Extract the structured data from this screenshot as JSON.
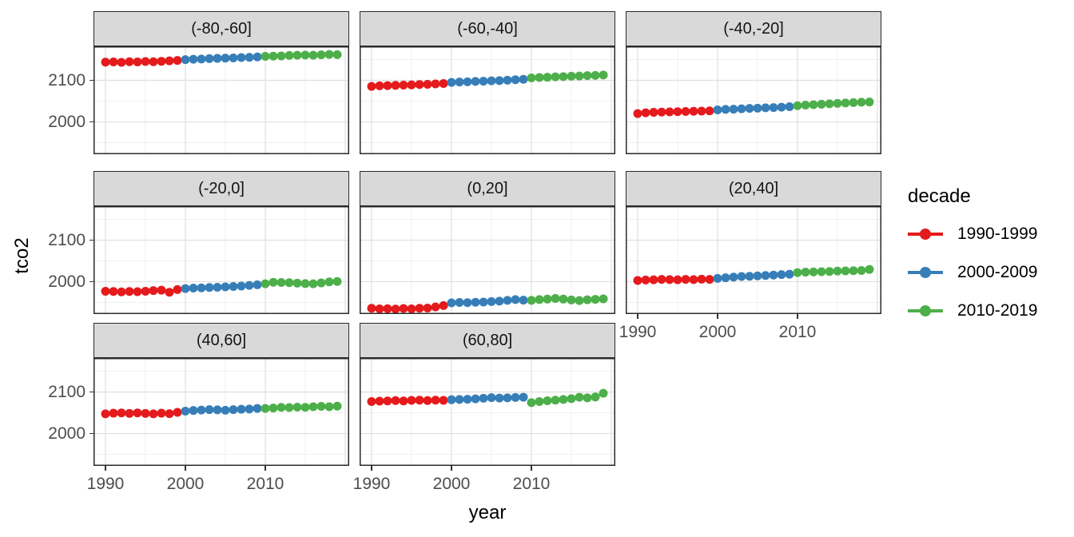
{
  "axes": {
    "x": {
      "label": "year"
    },
    "y": {
      "label": "tco2"
    }
  },
  "legend": {
    "title": "decade",
    "entries": [
      {
        "label": "1990-1999",
        "color": "#E41A1C",
        "year_min": 1990,
        "year_max": 1999
      },
      {
        "label": "2000-2009",
        "color": "#377EB8",
        "year_min": 2000,
        "year_max": 2009
      },
      {
        "label": "2010-2019",
        "color": "#4DAF4A",
        "year_min": 2010,
        "year_max": 2019
      }
    ]
  },
  "style": {
    "strip_bg": "#D9D9D9",
    "panel_bg": "#FFFFFF",
    "panel_border": "#2B2B2B",
    "grid_major": "#E1E1E1",
    "grid_minor": "#F0F0F0",
    "axis_text": "#4D4D4D"
  },
  "chart_data": {
    "type": "scatter",
    "title": "",
    "xlabel": "year",
    "ylabel": "tco2",
    "legend_position": "right",
    "grid": true,
    "x_domain": [
      1988.5,
      2020.5
    ],
    "y_domain": [
      1922,
      2182
    ],
    "x_major_gridlines": [
      1990,
      2000,
      2010,
      2020
    ],
    "x_minor_gridlines": [
      1995,
      2005,
      2015
    ],
    "y_major_gridlines": [
      2000,
      2100
    ],
    "y_minor_gridlines": [
      1950,
      2050,
      2150
    ],
    "x_ticks": [
      {
        "value": 1990,
        "label": "1990"
      },
      {
        "value": 2000,
        "label": "2000"
      },
      {
        "value": 2010,
        "label": "2010"
      }
    ],
    "y_ticks": [
      {
        "value": 2100,
        "label": "2100"
      },
      {
        "value": 2000,
        "label": "2000"
      }
    ],
    "years": [
      1990,
      1991,
      1992,
      1993,
      1994,
      1995,
      1996,
      1997,
      1998,
      1999,
      2000,
      2001,
      2002,
      2003,
      2004,
      2005,
      2006,
      2007,
      2008,
      2009,
      2010,
      2011,
      2012,
      2013,
      2014,
      2015,
      2016,
      2017,
      2018,
      2019
    ],
    "facets": [
      {
        "label": "(-80,-60]",
        "row": 0,
        "col": 0,
        "show_y_axis": true,
        "show_x_axis": false,
        "values": [
          2144,
          2144.5,
          2143.5,
          2145,
          2144.5,
          2145.5,
          2145,
          2146,
          2147,
          2148,
          2150,
          2151,
          2151.5,
          2152.5,
          2153,
          2153.5,
          2154,
          2155,
          2155.5,
          2156.5,
          2158,
          2158.5,
          2159,
          2160,
          2160.5,
          2161,
          2160.5,
          2161.5,
          2162.5,
          2162
        ]
      },
      {
        "label": "(-60,-40]",
        "row": 0,
        "col": 1,
        "show_y_axis": false,
        "show_x_axis": false,
        "values": [
          2085.5,
          2087,
          2087.5,
          2088,
          2088.5,
          2089,
          2090,
          2090.5,
          2091.5,
          2092.5,
          2095,
          2096,
          2096.5,
          2097.5,
          2098,
          2099,
          2099.5,
          2100.5,
          2101.5,
          2102.5,
          2106,
          2107,
          2107.5,
          2108.5,
          2109,
          2110,
          2110.5,
          2111.5,
          2112,
          2113
        ]
      },
      {
        "label": "(-40,-20]",
        "row": 0,
        "col": 2,
        "show_y_axis": false,
        "show_x_axis": false,
        "values": [
          2020,
          2022,
          2023,
          2023.5,
          2024,
          2024.5,
          2025,
          2025.5,
          2026,
          2026.5,
          2029,
          2030,
          2030.5,
          2031.5,
          2032.5,
          2033,
          2034,
          2034.5,
          2035.5,
          2036.5,
          2039,
          2040.5,
          2041.5,
          2042.5,
          2043.5,
          2044.5,
          2045.5,
          2046.5,
          2047.5,
          2048
        ]
      },
      {
        "label": "(-20,0]",
        "row": 1,
        "col": 0,
        "show_y_axis": true,
        "show_x_axis": false,
        "values": [
          1977,
          1976.5,
          1975.5,
          1976.5,
          1976,
          1977,
          1978.5,
          1979.5,
          1974.5,
          1981,
          1983.5,
          1984.5,
          1985,
          1986,
          1986.5,
          1987.5,
          1988.5,
          1989.5,
          1991,
          1992.5,
          1995,
          1998.5,
          1998,
          1997.5,
          1996.5,
          1995.5,
          1995,
          1997,
          1999.5,
          2000.5
        ]
      },
      {
        "label": "(0,20]",
        "row": 1,
        "col": 1,
        "show_y_axis": false,
        "show_x_axis": false,
        "values": [
          1936,
          1934.5,
          1935,
          1934,
          1935.5,
          1934.5,
          1936,
          1936.5,
          1939,
          1942.5,
          1949,
          1950,
          1949.5,
          1950.5,
          1951,
          1952,
          1953,
          1955,
          1957,
          1955.5,
          1955,
          1957,
          1958,
          1959.5,
          1958,
          1956,
          1954.5,
          1956.5,
          1957.5,
          1958.5
        ]
      },
      {
        "label": "(20,40]",
        "row": 1,
        "col": 2,
        "show_y_axis": false,
        "show_x_axis": true,
        "values": [
          2003,
          2004,
          2004.5,
          2005.5,
          2005,
          2004.5,
          2005.5,
          2005,
          2006,
          2005.5,
          2008,
          2009.5,
          2011,
          2012.5,
          2013,
          2014,
          2015,
          2016,
          2017,
          2018,
          2022,
          2023,
          2023.5,
          2024,
          2024.5,
          2025.5,
          2026,
          2026.5,
          2027,
          2029.5
        ]
      },
      {
        "label": "(40,60]",
        "row": 2,
        "col": 0,
        "show_y_axis": true,
        "show_x_axis": true,
        "values": [
          2047.5,
          2049,
          2049.5,
          2048.5,
          2049.5,
          2048.5,
          2047.5,
          2049,
          2048,
          2051,
          2054,
          2055.5,
          2056.5,
          2057.5,
          2057,
          2056,
          2057.5,
          2058.5,
          2059,
          2060.5,
          2060.5,
          2061.5,
          2063,
          2062.5,
          2063.5,
          2063,
          2064.5,
          2065.5,
          2064.5,
          2066
        ]
      },
      {
        "label": "(60,80]",
        "row": 2,
        "col": 1,
        "show_y_axis": false,
        "show_x_axis": true,
        "values": [
          2077,
          2078,
          2078.5,
          2079.5,
          2078.5,
          2080,
          2080.5,
          2079.5,
          2080.5,
          2080,
          2081.5,
          2082,
          2082.5,
          2083.5,
          2085,
          2086.5,
          2085.5,
          2086,
          2087,
          2087.5,
          2074.5,
          2077,
          2079,
          2080.5,
          2082,
          2084,
          2087.5,
          2086,
          2088,
          2097
        ]
      }
    ]
  }
}
